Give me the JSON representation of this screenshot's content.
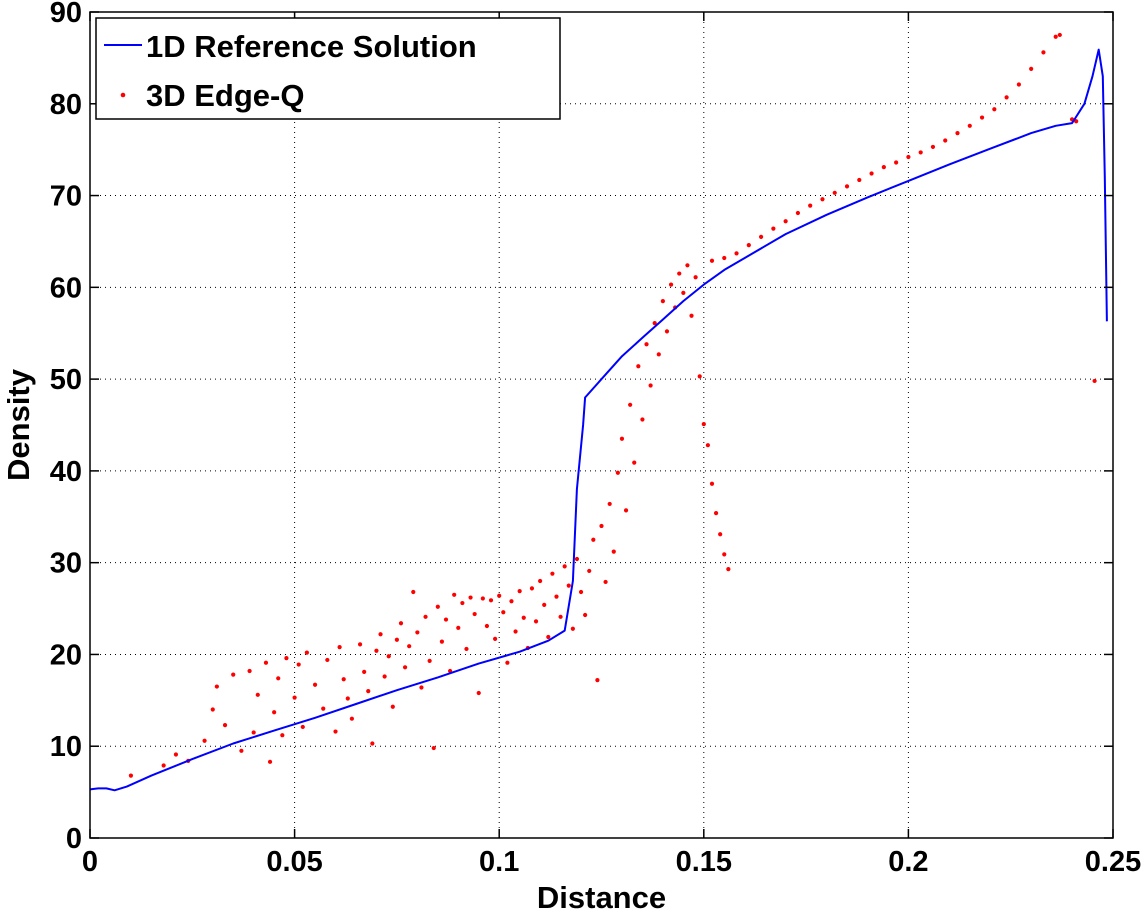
{
  "chart_data": {
    "type": "line",
    "title": "",
    "xlabel": "Distance",
    "ylabel": "Density",
    "xlim": [
      0,
      0.25
    ],
    "ylim": [
      0,
      90
    ],
    "x_ticks": [
      0,
      0.05,
      0.1,
      0.15,
      0.2,
      0.25
    ],
    "x_tick_labels": [
      "0",
      "0.05",
      "0.1",
      "0.15",
      "0.2",
      "0.25"
    ],
    "y_ticks": [
      0,
      10,
      20,
      30,
      40,
      50,
      60,
      70,
      80,
      90
    ],
    "y_tick_labels": [
      "0",
      "10",
      "20",
      "30",
      "40",
      "50",
      "60",
      "70",
      "80",
      "90"
    ],
    "grid": true,
    "legend_position": "top-left",
    "series": [
      {
        "name": "1D Reference Solution",
        "kind": "line",
        "color": "#0000ff",
        "points": [
          [
            0.0,
            5.3
          ],
          [
            0.002,
            5.4
          ],
          [
            0.004,
            5.4
          ],
          [
            0.006,
            5.2
          ],
          [
            0.009,
            5.6
          ],
          [
            0.015,
            6.8
          ],
          [
            0.025,
            8.6
          ],
          [
            0.035,
            10.3
          ],
          [
            0.045,
            11.7
          ],
          [
            0.055,
            13.1
          ],
          [
            0.065,
            14.6
          ],
          [
            0.075,
            16.1
          ],
          [
            0.085,
            17.5
          ],
          [
            0.095,
            19.0
          ],
          [
            0.105,
            20.3
          ],
          [
            0.112,
            21.5
          ],
          [
            0.116,
            22.6
          ],
          [
            0.118,
            28.0
          ],
          [
            0.119,
            38.0
          ],
          [
            0.1205,
            45.0
          ],
          [
            0.121,
            48.0
          ],
          [
            0.125,
            50.0
          ],
          [
            0.13,
            52.5
          ],
          [
            0.135,
            54.5
          ],
          [
            0.14,
            56.5
          ],
          [
            0.145,
            58.5
          ],
          [
            0.15,
            60.3
          ],
          [
            0.155,
            61.9
          ],
          [
            0.16,
            63.2
          ],
          [
            0.17,
            65.8
          ],
          [
            0.18,
            67.9
          ],
          [
            0.19,
            69.8
          ],
          [
            0.2,
            71.6
          ],
          [
            0.21,
            73.4
          ],
          [
            0.22,
            75.1
          ],
          [
            0.23,
            76.8
          ],
          [
            0.236,
            77.6
          ],
          [
            0.24,
            77.9
          ],
          [
            0.243,
            80.0
          ],
          [
            0.245,
            83.0
          ],
          [
            0.2465,
            85.9
          ],
          [
            0.2475,
            83.0
          ],
          [
            0.248,
            72.0
          ],
          [
            0.2485,
            56.3
          ]
        ]
      },
      {
        "name": "3D Edge-Q",
        "kind": "scatter",
        "color": "#ff0000",
        "points": [
          [
            0.01,
            6.8
          ],
          [
            0.018,
            7.9
          ],
          [
            0.021,
            9.1
          ],
          [
            0.024,
            8.4
          ],
          [
            0.028,
            10.6
          ],
          [
            0.03,
            14.0
          ],
          [
            0.031,
            16.5
          ],
          [
            0.033,
            12.3
          ],
          [
            0.035,
            17.8
          ],
          [
            0.037,
            9.5
          ],
          [
            0.039,
            18.2
          ],
          [
            0.04,
            11.5
          ],
          [
            0.041,
            15.6
          ],
          [
            0.043,
            19.1
          ],
          [
            0.044,
            8.3
          ],
          [
            0.045,
            13.7
          ],
          [
            0.046,
            17.4
          ],
          [
            0.047,
            11.2
          ],
          [
            0.048,
            19.6
          ],
          [
            0.05,
            15.3
          ],
          [
            0.051,
            18.9
          ],
          [
            0.052,
            12.1
          ],
          [
            0.053,
            20.2
          ],
          [
            0.055,
            16.7
          ],
          [
            0.057,
            14.1
          ],
          [
            0.058,
            19.4
          ],
          [
            0.06,
            11.6
          ],
          [
            0.061,
            20.8
          ],
          [
            0.062,
            17.3
          ],
          [
            0.063,
            15.2
          ],
          [
            0.064,
            13.0
          ],
          [
            0.066,
            21.1
          ],
          [
            0.067,
            18.1
          ],
          [
            0.068,
            16.0
          ],
          [
            0.069,
            10.3
          ],
          [
            0.07,
            20.4
          ],
          [
            0.071,
            22.2
          ],
          [
            0.072,
            17.6
          ],
          [
            0.073,
            19.8
          ],
          [
            0.074,
            14.3
          ],
          [
            0.075,
            21.6
          ],
          [
            0.076,
            23.4
          ],
          [
            0.077,
            18.6
          ],
          [
            0.078,
            20.9
          ],
          [
            0.079,
            26.8
          ],
          [
            0.08,
            22.4
          ],
          [
            0.081,
            16.4
          ],
          [
            0.082,
            24.1
          ],
          [
            0.083,
            19.3
          ],
          [
            0.084,
            9.8
          ],
          [
            0.085,
            25.2
          ],
          [
            0.086,
            21.4
          ],
          [
            0.087,
            23.8
          ],
          [
            0.088,
            18.2
          ],
          [
            0.089,
            26.5
          ],
          [
            0.09,
            22.9
          ],
          [
            0.091,
            25.6
          ],
          [
            0.092,
            20.6
          ],
          [
            0.093,
            26.2
          ],
          [
            0.094,
            24.4
          ],
          [
            0.095,
            15.8
          ],
          [
            0.096,
            26.1
          ],
          [
            0.097,
            23.1
          ],
          [
            0.098,
            25.9
          ],
          [
            0.099,
            21.7
          ],
          [
            0.1,
            26.4
          ],
          [
            0.101,
            24.6
          ],
          [
            0.102,
            19.1
          ],
          [
            0.103,
            25.8
          ],
          [
            0.104,
            22.5
          ],
          [
            0.105,
            26.9
          ],
          [
            0.106,
            24.0
          ],
          [
            0.107,
            20.7
          ],
          [
            0.108,
            27.2
          ],
          [
            0.109,
            23.6
          ],
          [
            0.11,
            28.0
          ],
          [
            0.111,
            25.4
          ],
          [
            0.112,
            21.9
          ],
          [
            0.113,
            28.8
          ],
          [
            0.114,
            26.3
          ],
          [
            0.115,
            24.1
          ],
          [
            0.116,
            29.6
          ],
          [
            0.117,
            27.5
          ],
          [
            0.118,
            22.8
          ],
          [
            0.119,
            30.4
          ],
          [
            0.12,
            26.8
          ],
          [
            0.121,
            24.3
          ],
          [
            0.122,
            29.1
          ],
          [
            0.123,
            32.5
          ],
          [
            0.124,
            17.2
          ],
          [
            0.125,
            34.0
          ],
          [
            0.126,
            27.9
          ],
          [
            0.127,
            36.4
          ],
          [
            0.128,
            31.2
          ],
          [
            0.129,
            39.8
          ],
          [
            0.13,
            43.5
          ],
          [
            0.131,
            35.7
          ],
          [
            0.132,
            47.2
          ],
          [
            0.133,
            40.9
          ],
          [
            0.134,
            51.4
          ],
          [
            0.135,
            45.6
          ],
          [
            0.136,
            53.8
          ],
          [
            0.137,
            49.3
          ],
          [
            0.138,
            56.1
          ],
          [
            0.139,
            52.7
          ],
          [
            0.14,
            58.5
          ],
          [
            0.141,
            55.2
          ],
          [
            0.142,
            60.3
          ],
          [
            0.143,
            57.8
          ],
          [
            0.144,
            61.5
          ],
          [
            0.145,
            59.4
          ],
          [
            0.146,
            62.4
          ],
          [
            0.147,
            56.9
          ],
          [
            0.148,
            61.1
          ],
          [
            0.149,
            50.3
          ],
          [
            0.15,
            45.1
          ],
          [
            0.151,
            42.8
          ],
          [
            0.152,
            38.6
          ],
          [
            0.153,
            35.4
          ],
          [
            0.154,
            33.1
          ],
          [
            0.155,
            30.9
          ],
          [
            0.156,
            29.3
          ],
          [
            0.152,
            62.9
          ],
          [
            0.155,
            63.2
          ],
          [
            0.158,
            63.7
          ],
          [
            0.161,
            64.6
          ],
          [
            0.164,
            65.5
          ],
          [
            0.167,
            66.4
          ],
          [
            0.17,
            67.2
          ],
          [
            0.173,
            68.1
          ],
          [
            0.176,
            68.9
          ],
          [
            0.179,
            69.6
          ],
          [
            0.182,
            70.3
          ],
          [
            0.185,
            71.0
          ],
          [
            0.188,
            71.7
          ],
          [
            0.191,
            72.4
          ],
          [
            0.194,
            73.1
          ],
          [
            0.197,
            73.6
          ],
          [
            0.2,
            74.2
          ],
          [
            0.203,
            74.7
          ],
          [
            0.206,
            75.3
          ],
          [
            0.209,
            76.0
          ],
          [
            0.212,
            76.8
          ],
          [
            0.215,
            77.6
          ],
          [
            0.218,
            78.5
          ],
          [
            0.221,
            79.4
          ],
          [
            0.224,
            80.7
          ],
          [
            0.227,
            82.1
          ],
          [
            0.23,
            83.8
          ],
          [
            0.233,
            85.6
          ],
          [
            0.236,
            87.3
          ],
          [
            0.237,
            87.5
          ],
          [
            0.24,
            78.3
          ],
          [
            0.241,
            78.1
          ],
          [
            0.2455,
            49.8
          ]
        ]
      }
    ]
  }
}
